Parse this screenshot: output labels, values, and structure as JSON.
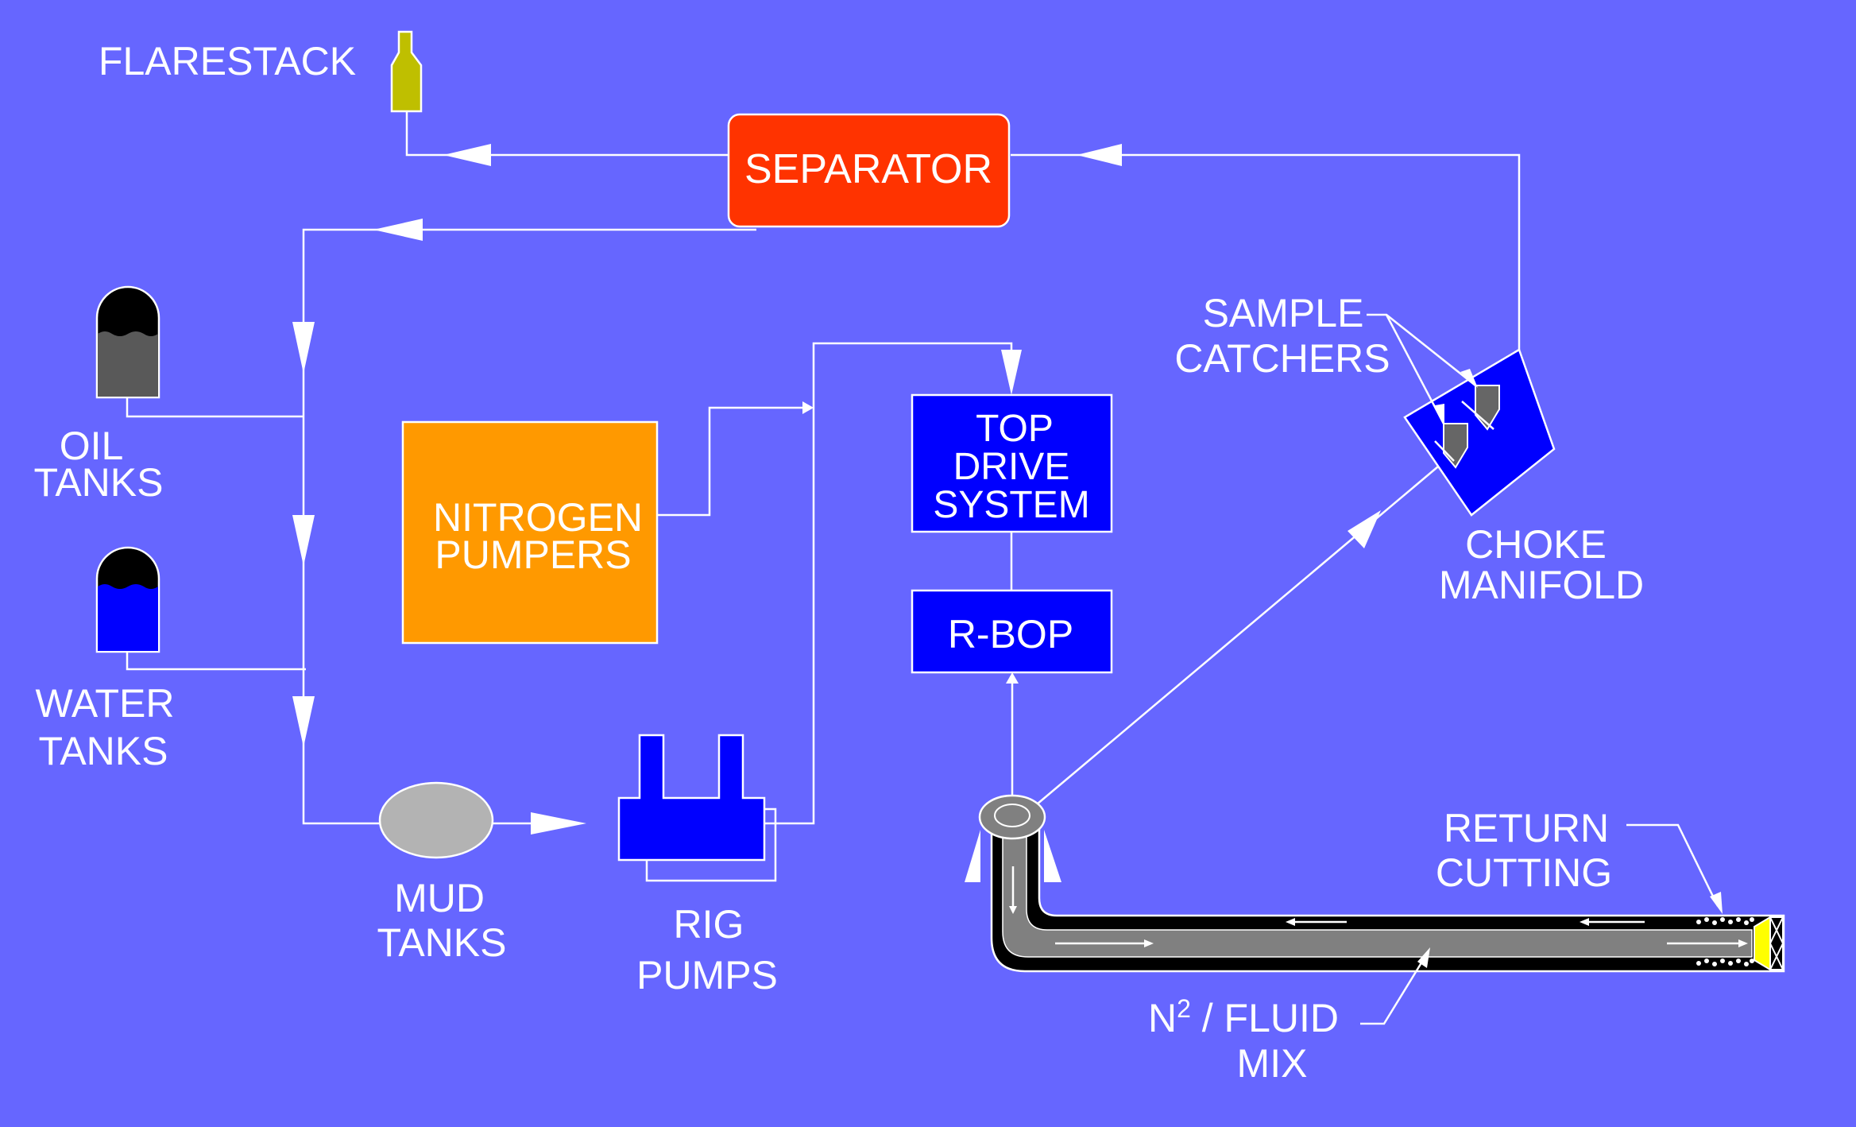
{
  "colors": {
    "background": "#6666ff",
    "separator": "#ff3300",
    "nitrogen": "#ff9900",
    "blue_equipment": "#0000ff",
    "flarestack": "#bfbf00",
    "mud_tank": "#b3b3b3",
    "oil": "#595959",
    "pipe_fill": "#808080",
    "bit": "#ffff00"
  },
  "labels": {
    "flarestack": "FLARESTACK",
    "separator": "SEPARATOR",
    "oil_1": "OIL",
    "oil_2": "TANKS",
    "water_1": "WATER",
    "water_2": "TANKS",
    "nitrogen_1": "NITROGEN",
    "nitrogen_2": "PUMPERS",
    "mud_1": "MUD",
    "mud_2": "TANKS",
    "rig_1": "RIG",
    "rig_2": "PUMPS",
    "topdrive_1": "TOP",
    "topdrive_2": "DRIVE",
    "topdrive_3": "SYSTEM",
    "rbop": "R-BOP",
    "sample_1": "SAMPLE",
    "sample_2": "CATCHERS",
    "choke_1": "CHOKE",
    "choke_2": "MANIFOLD",
    "return_1": "RETURN",
    "return_2": "CUTTING",
    "n2_base": "N",
    "n2_sup": "2",
    "n2_rest": " / FLUID",
    "mix": "MIX"
  }
}
